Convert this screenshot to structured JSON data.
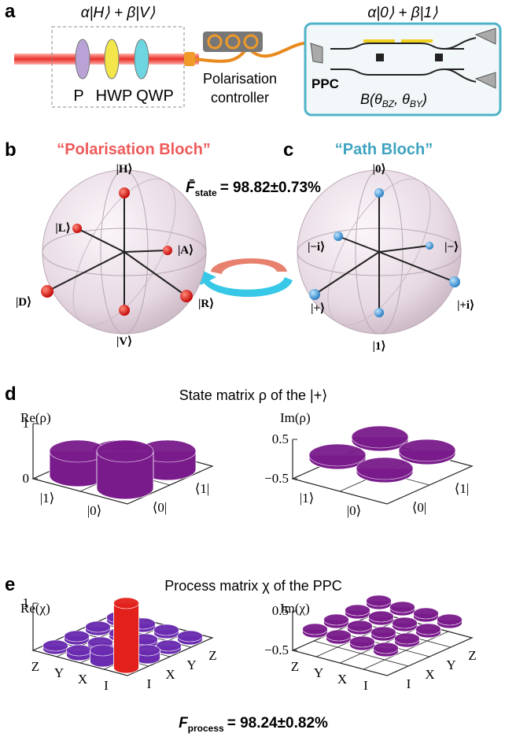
{
  "a": {
    "label": "a",
    "input_state": "α|H⟩ + β|V⟩",
    "elements": [
      "P",
      "HWP",
      "QWP"
    ],
    "controller": [
      "Polarisation",
      "controller"
    ],
    "output_state": "α|0⟩ + β|1⟩",
    "chip": "PPC",
    "operation": {
      "prefix": "B(θ",
      "sub1": "BZ",
      "mid": ", θ",
      "sub2": "BY",
      "suffix": ")"
    }
  },
  "b": {
    "label": "b",
    "title": "“Polarisation Bloch”",
    "states": [
      "|H⟩",
      "|L⟩",
      "|A⟩",
      "|D⟩",
      "|R⟩",
      "|V⟩"
    ]
  },
  "fidelity_state": {
    "symbol": "F̄",
    "subscript": "state",
    "value": "= 98.82±0.73%"
  },
  "c": {
    "label": "c",
    "title": "“Path Bloch”",
    "states": [
      "|0⟩",
      "|−i⟩",
      "|−⟩",
      "|+⟩",
      "|+i⟩",
      "|1⟩"
    ]
  },
  "d": {
    "label": "d",
    "title": "State matrix ρ of the |+⟩",
    "plots": [
      {
        "name": "Re(ρ)",
        "rows": [
          "|1⟩",
          "|0⟩"
        ],
        "cols": [
          "⟨1|",
          "⟨0|"
        ],
        "zlim": [
          0,
          1
        ],
        "zticks": [
          0,
          1
        ],
        "values": [
          [
            0.5,
            0.5
          ],
          [
            0.5,
            0.5
          ]
        ],
        "colors": [
          "#7a1b8c",
          "#7a1b8c"
        ]
      },
      {
        "name": "Im(ρ)",
        "rows": [
          "|1⟩",
          "|0⟩"
        ],
        "cols": [
          "⟨1|",
          "⟨0|"
        ],
        "zlim": [
          -0.5,
          0.5
        ],
        "zticks": [
          {
            "value": -0.5,
            "label": "−0.5"
          },
          0.5
        ],
        "values": [
          [
            0,
            0.02
          ],
          [
            -0.02,
            0
          ]
        ],
        "colors": [
          "#7a1b8c",
          "#7a1b8c"
        ]
      }
    ]
  },
  "e": {
    "label": "e",
    "title": "Process matrix χ of the PPC",
    "plots": [
      {
        "name": "Re(χ)",
        "rows": [
          "Z",
          "Y",
          "X",
          "I"
        ],
        "cols": [
          "Z",
          "Y",
          "X",
          "I"
        ],
        "zlim": [
          0,
          1
        ],
        "zticks": [
          1
        ],
        "values": [
          [
            0,
            0,
            0,
            0
          ],
          [
            0,
            0,
            0,
            0
          ],
          [
            0,
            0,
            0,
            0
          ],
          [
            0,
            0,
            0,
            1
          ]
        ],
        "colors": [
          "#6a2bb0",
          "#e3211c"
        ]
      },
      {
        "name": "Im(χ)",
        "rows": [
          "Z",
          "Y",
          "X",
          "I"
        ],
        "cols": [
          "Z",
          "Y",
          "X",
          "I"
        ],
        "zlim": [
          -0.5,
          0.5
        ],
        "zticks": [
          {
            "value": -0.5,
            "label": "−0.5"
          },
          0.5
        ],
        "values": [
          [
            0,
            0,
            0,
            0
          ],
          [
            0,
            0,
            0,
            0
          ],
          [
            0,
            0,
            0,
            0
          ],
          [
            0,
            0,
            0,
            0
          ]
        ],
        "colors": [
          "#7a1b8c",
          "#7a1b8c"
        ]
      }
    ]
  },
  "fidelity_process": {
    "symbol": "F",
    "subscript": "process",
    "value": "= 98.24±0.82%"
  }
}
